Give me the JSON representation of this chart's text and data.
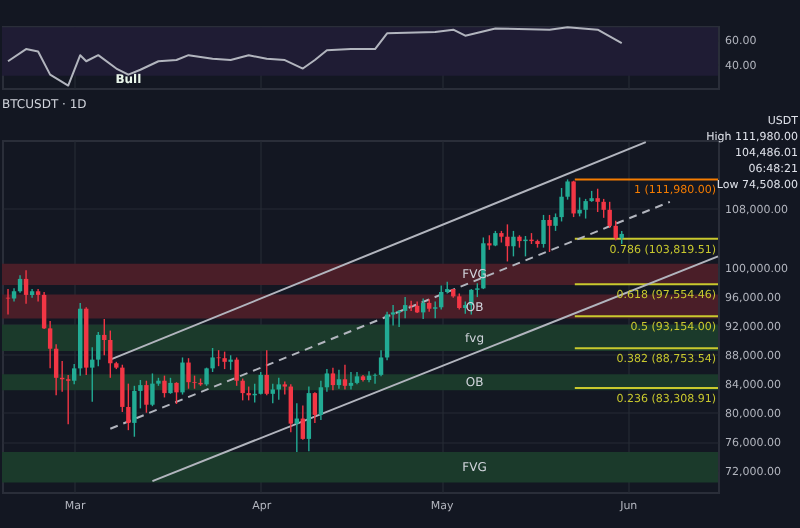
{
  "chart_data": [
    {
      "type": "line",
      "tick_labels": "y",
      "grid": true,
      "xlim": [
        "--02-17",
        "--06-16"
      ],
      "xticks": [
        {
          "value": "--03-01",
          "label": "Mar"
        },
        {
          "value": "--04-01",
          "label": "Apr"
        },
        {
          "value": "--05-01",
          "label": "May"
        },
        {
          "value": "--06-01",
          "label": "Jun"
        }
      ],
      "ylim": [
        20,
        71
      ],
      "yticks": [
        {
          "value": 40,
          "label": "40.00"
        },
        {
          "value": 60,
          "label": "60.00"
        }
      ],
      "bands": [
        {
          "axis": "y",
          "from": 30,
          "to": 70,
          "color": "#1f1c34"
        }
      ],
      "annotations": [
        {
          "text": "Bull",
          "x": "--03-10",
          "y": 27
        }
      ],
      "series": [
        {
          "color": "#b2b5be",
          "x": [
            "--02-18",
            "--02-21",
            "--02-23",
            "--02-25",
            "--02-28",
            "--03-02",
            "--03-03",
            "--03-05",
            "--03-08",
            "--03-10",
            "--03-12",
            "--03-15",
            "--03-18",
            "--03-20",
            "--03-24",
            "--03-27",
            "--03-30",
            "--04-02",
            "--04-05",
            "--04-08",
            "--04-10",
            "--04-12",
            "--04-16",
            "--04-20",
            "--04-22",
            "--04-30",
            "--05-03",
            "--05-05",
            "--05-10",
            "--05-19",
            "--05-22",
            "--05-27",
            "--05-31"
          ],
          "values": [
            42,
            52,
            50,
            31,
            22,
            47,
            42,
            47,
            36,
            31,
            35,
            42,
            43,
            47,
            44,
            43,
            47,
            44,
            43,
            36,
            43,
            51,
            52,
            52,
            65,
            66,
            68,
            63,
            69,
            68,
            70,
            68,
            57
          ]
        }
      ]
    },
    {
      "type": "candlestick",
      "title": "BTCUSDT · 1D",
      "grid": true,
      "colors": [
        "#f23645",
        "#22ab94",
        "#22ab94",
        "#f23645",
        "#22ab94",
        "#f23645",
        "#f23645",
        "#f23645",
        "#f23645",
        "#f23645",
        "#f23645",
        "#22ab94",
        "#22ab94",
        "#f23645",
        "#22ab94",
        "#22ab94",
        "#f23645",
        "#f23645",
        "#f23645",
        "#f23645",
        "#f23645",
        "#22ab94",
        "#22ab94",
        "#f23645",
        "#22ab94",
        "#22ab94",
        "#f23645",
        "#22ab94",
        "#f23645",
        "#22ab94",
        "#f23645",
        "#f23645",
        "#f23645",
        "#22ab94",
        "#22ab94",
        "#f23645",
        "#f23645",
        "#22ab94",
        "#f23645",
        "#f23645",
        "#f23645",
        "#22ab94",
        "#22ab94",
        "#f23645",
        "#22ab94",
        "#22ab94",
        "#f23645",
        "#f23645",
        "#22ab94",
        "#f23645",
        "#22ab94",
        "#f23645",
        "#22ab94",
        "#22ab94",
        "#f23645",
        "#22ab94",
        "#f23645",
        "#22ab94",
        "#22ab94",
        "#f23645",
        "#22ab94",
        "#22ab94",
        "#22ab94",
        "#22ab94",
        "#22ab94",
        "#22ab94",
        "#22ab94",
        "#f23645",
        "#f23645",
        "#22ab94",
        "#f23645",
        "#22ab94",
        "#22ab94",
        "#22ab94",
        "#f23645",
        "#f23645",
        "#22ab94",
        "#22ab94",
        "#22ab94",
        "#22ab94",
        "#f23645",
        "#22ab94",
        "#f23645",
        "#f23645",
        "#22ab94",
        "#f23645",
        "#22ab94",
        "#f23645",
        "#f23645",
        "#22ab94",
        "#f23645",
        "#22ab94",
        "#22ab94",
        "#22ab94",
        "#f23645",
        "#22ab94",
        "#22ab94",
        "#22ab94",
        "#f23645",
        "#f23645",
        "#f23645",
        "#f23645",
        "#22ab94"
      ],
      "xlim": [
        "--02-17",
        "--06-16"
      ],
      "xticks": [
        {
          "value": "--03-01",
          "label": "Mar"
        },
        {
          "value": "--04-01",
          "label": "Apr"
        },
        {
          "value": "--05-01",
          "label": "May"
        },
        {
          "value": "--06-01",
          "label": "Jun"
        }
      ],
      "ylim": [
        69000,
        117400
      ],
      "yticks": [
        {
          "value": 72000,
          "label": "72,000.00"
        },
        {
          "value": 76000,
          "label": "76,000.00"
        },
        {
          "value": 80000,
          "label": "80,000.00"
        },
        {
          "value": 84000,
          "label": "84,000.00"
        },
        {
          "value": 88000,
          "label": "88,000.00"
        },
        {
          "value": 92000,
          "label": "92,000.00"
        },
        {
          "value": 96000,
          "label": "96,000.00"
        },
        {
          "value": 100000,
          "label": "100,000.00"
        },
        {
          "value": 108000,
          "label": "108,000.00"
        }
      ],
      "x": [
        "--02-18",
        "--02-19",
        "--02-20",
        "--02-21",
        "--02-22",
        "--02-23",
        "--02-24",
        "--02-25",
        "--02-26",
        "--02-27",
        "--02-28",
        "--03-01",
        "--03-02",
        "--03-03",
        "--03-04",
        "--03-05",
        "--03-06",
        "--03-07",
        "--03-08",
        "--03-09",
        "--03-10",
        "--03-11",
        "--03-12",
        "--03-13",
        "--03-14",
        "--03-15",
        "--03-16",
        "--03-17",
        "--03-18",
        "--03-19",
        "--03-20",
        "--03-21",
        "--03-22",
        "--03-23",
        "--03-24",
        "--03-25",
        "--03-26",
        "--03-27",
        "--03-28",
        "--03-29",
        "--03-30",
        "--03-31",
        "--04-01",
        "--04-02",
        "--04-03",
        "--04-04",
        "--04-05",
        "--04-06",
        "--04-07",
        "--04-08",
        "--04-09",
        "--04-10",
        "--04-11",
        "--04-12",
        "--04-13",
        "--04-14",
        "--04-15",
        "--04-16",
        "--04-17",
        "--04-18",
        "--04-19",
        "--04-20",
        "--04-21",
        "--04-22",
        "--04-23",
        "--04-24",
        "--04-25",
        "--04-26",
        "--04-27",
        "--04-28",
        "--04-29",
        "--04-30",
        "--05-01",
        "--05-02",
        "--05-03",
        "--05-04",
        "--05-05",
        "--05-06",
        "--05-07",
        "--05-08",
        "--05-09",
        "--05-10",
        "--05-11",
        "--05-12",
        "--05-13",
        "--05-14",
        "--05-15",
        "--05-16",
        "--05-17",
        "--05-18",
        "--05-19",
        "--05-20",
        "--05-21",
        "--05-22",
        "--05-23",
        "--05-24",
        "--05-25",
        "--05-26",
        "--05-27",
        "--05-28",
        "--05-29",
        "--05-30",
        "--05-31"
      ],
      "ohlc": [
        [
          95700,
          96900,
          93400,
          95600
        ],
        [
          95600,
          97000,
          95200,
          96600
        ],
        [
          96600,
          98800,
          96400,
          98300
        ],
        [
          98300,
          99500,
          94900,
          96100
        ],
        [
          96100,
          96900,
          95700,
          96600
        ],
        [
          96600,
          96900,
          95200,
          96100
        ],
        [
          96100,
          96500,
          91400,
          91500
        ],
        [
          91500,
          92500,
          86000,
          88700
        ],
        [
          88700,
          89300,
          82300,
          84700
        ],
        [
          84700,
          87000,
          82800,
          84500
        ],
        [
          84500,
          85100,
          78300,
          84300
        ],
        [
          84300,
          86600,
          83800,
          86000
        ],
        [
          86000,
          95000,
          85000,
          94200
        ],
        [
          94200,
          94400,
          85100,
          86100
        ],
        [
          86100,
          88900,
          81400,
          87200
        ],
        [
          87200,
          91000,
          86300,
          90600
        ],
        [
          90600,
          92800,
          87800,
          89900
        ],
        [
          89900,
          91200,
          84700,
          86700
        ],
        [
          86700,
          86900,
          85900,
          86100
        ],
        [
          86100,
          86500,
          80000,
          80700
        ],
        [
          80700,
          83900,
          77500,
          78500
        ],
        [
          78500,
          83600,
          76600,
          82900
        ],
        [
          82900,
          84400,
          80500,
          83700
        ],
        [
          83700,
          84300,
          79900,
          81000
        ],
        [
          81000,
          85300,
          80800,
          83900
        ],
        [
          83900,
          84700,
          83600,
          84300
        ],
        [
          84300,
          85000,
          82000,
          82600
        ],
        [
          82600,
          84700,
          82500,
          84000
        ],
        [
          84000,
          84100,
          81100,
          82700
        ],
        [
          82700,
          87500,
          82400,
          86800
        ],
        [
          86800,
          87400,
          83200,
          84100
        ],
        [
          84100,
          85000,
          83200,
          84000
        ],
        [
          84000,
          84600,
          83600,
          83800
        ],
        [
          83800,
          86100,
          83600,
          86000
        ],
        [
          86000,
          88800,
          85500,
          87500
        ],
        [
          87500,
          88500,
          86300,
          87400
        ],
        [
          87400,
          88300,
          85900,
          86900
        ],
        [
          86900,
          87800,
          85800,
          87200
        ],
        [
          87200,
          87500,
          83600,
          84300
        ],
        [
          84300,
          84600,
          81600,
          82600
        ],
        [
          82600,
          83500,
          81600,
          82300
        ],
        [
          82300,
          83900,
          81300,
          82500
        ],
        [
          82500,
          85500,
          82400,
          85100
        ],
        [
          85100,
          88500,
          82300,
          82500
        ],
        [
          82500,
          83900,
          81200,
          83100
        ],
        [
          83100,
          84700,
          81700,
          83800
        ],
        [
          83800,
          84200,
          82400,
          83500
        ],
        [
          83500,
          83800,
          77200,
          78400
        ],
        [
          78400,
          81200,
          74508,
          79100
        ],
        [
          79100,
          80900,
          76200,
          76300
        ],
        [
          76300,
          83500,
          74600,
          82600
        ],
        [
          82600,
          82700,
          78500,
          79600
        ],
        [
          79600,
          84300,
          78900,
          83400
        ],
        [
          83400,
          85900,
          82800,
          85300
        ],
        [
          85300,
          86100,
          83000,
          83700
        ],
        [
          83700,
          85800,
          83200,
          84500
        ],
        [
          84500,
          86500,
          83100,
          83600
        ],
        [
          83600,
          85500,
          83100,
          84000
        ],
        [
          84000,
          85500,
          83800,
          84900
        ],
        [
          84900,
          85100,
          84200,
          84400
        ],
        [
          84400,
          85600,
          84100,
          85000
        ],
        [
          85000,
          85300,
          83900,
          85100
        ],
        [
          85100,
          88500,
          84900,
          87500
        ],
        [
          87500,
          93800,
          87100,
          93400
        ],
        [
          93400,
          94700,
          91900,
          93700
        ],
        [
          93700,
          94000,
          91700,
          93900
        ],
        [
          93900,
          95800,
          92900,
          94700
        ],
        [
          94700,
          95300,
          93900,
          94600
        ],
        [
          94600,
          95200,
          93600,
          93700
        ],
        [
          93700,
          95600,
          92800,
          95000
        ],
        [
          95000,
          95500,
          93800,
          94200
        ],
        [
          94200,
          95200,
          92900,
          94400
        ],
        [
          94400,
          97400,
          94100,
          96500
        ],
        [
          96500,
          97900,
          96300,
          96900
        ],
        [
          96900,
          96900,
          95700,
          95900
        ],
        [
          95900,
          96300,
          94100,
          94300
        ],
        [
          94300,
          95200,
          93500,
          94700
        ],
        [
          94700,
          96900,
          93400,
          96800
        ],
        [
          96800,
          97700,
          95800,
          97000
        ],
        [
          97000,
          104000,
          96900,
          103200
        ],
        [
          103200,
          104300,
          102300,
          102900
        ],
        [
          102900,
          104900,
          102800,
          104600
        ],
        [
          104600,
          104900,
          103300,
          104100
        ],
        [
          104100,
          105800,
          100700,
          102800
        ],
        [
          102800,
          104900,
          101400,
          104100
        ],
        [
          104100,
          104300,
          102600,
          103500
        ],
        [
          103500,
          104200,
          101400,
          103700
        ],
        [
          103700,
          104600,
          103100,
          103500
        ],
        [
          103500,
          103700,
          102600,
          103100
        ],
        [
          103100,
          107100,
          102600,
          106400
        ],
        [
          106400,
          107100,
          102000,
          105600
        ],
        [
          105600,
          107300,
          104900,
          106800
        ],
        [
          106800,
          110800,
          106200,
          109600
        ],
        [
          109600,
          111980,
          109200,
          111700
        ],
        [
          111700,
          111800,
          106800,
          107300
        ],
        [
          107300,
          109500,
          106900,
          107800
        ],
        [
          107800,
          109300,
          106600,
          109000
        ],
        [
          109000,
          110400,
          108900,
          109400
        ],
        [
          109400,
          110700,
          107500,
          108900
        ],
        [
          108900,
          109300,
          106700,
          107800
        ],
        [
          107800,
          108900,
          105300,
          105600
        ],
        [
          105600,
          106300,
          103600,
          103900
        ],
        [
          103900,
          104900,
          103100,
          104486
        ]
      ],
      "series": [
        {
          "type": "line",
          "color": "#b2b5be",
          "x": [
            "--03-07",
            "--06-04"
          ],
          "values": [
            87200,
            117100
          ]
        },
        {
          "type": "line",
          "color": "#b2b5be",
          "line_style": "dashed",
          "x": [
            "--03-07",
            "--06-08"
          ],
          "values": [
            77700,
            108900
          ]
        },
        {
          "type": "line",
          "color": "#b2b5be",
          "x": [
            "--03-14",
            "--06-16"
          ],
          "values": [
            70500,
            101400
          ]
        }
      ],
      "bands": [
        {
          "axis": "y",
          "from": 97450,
          "to": 100400,
          "label": "FVG",
          "color": "#4a1e28"
        },
        {
          "axis": "y",
          "from": 92850,
          "to": 96150,
          "label": "OB",
          "color": "#4a1e28"
        },
        {
          "axis": "y",
          "from": 88400,
          "to": 92000,
          "label": "fvg",
          "color": "#1b3a2b"
        },
        {
          "axis": "y",
          "from": 83000,
          "to": 85200,
          "label": "OB",
          "color": "#1b3a2b"
        },
        {
          "axis": "y",
          "from": 70300,
          "to": 74500,
          "label": "FVG",
          "color": "#1b3a2b"
        }
      ],
      "ref_lines": [
        {
          "axis": "y",
          "value": 111980,
          "label": "1 (111,980.00)",
          "color": "#f57c00"
        },
        {
          "axis": "y",
          "value": 103819.51,
          "label": "0.786 (103,819.51)",
          "color": "#c9c92e"
        },
        {
          "axis": "y",
          "value": 97554.46,
          "label": "0.618 (97,554.46)",
          "color": "#c9c92e"
        },
        {
          "axis": "y",
          "value": 93154,
          "label": "0.5 (93,154.00)",
          "color": "#c9c92e"
        },
        {
          "axis": "y",
          "value": 88753.54,
          "label": "0.382 (88,753.54)",
          "color": "#c9c92e"
        },
        {
          "axis": "y",
          "value": 83308.91,
          "label": "0.236 (83,308.91)",
          "color": "#c9c92e"
        }
      ],
      "annotations": [
        "USDT",
        "High 111,980.00",
        "104,486.01",
        "06:48:21",
        "Low 74,508.00"
      ]
    }
  ]
}
